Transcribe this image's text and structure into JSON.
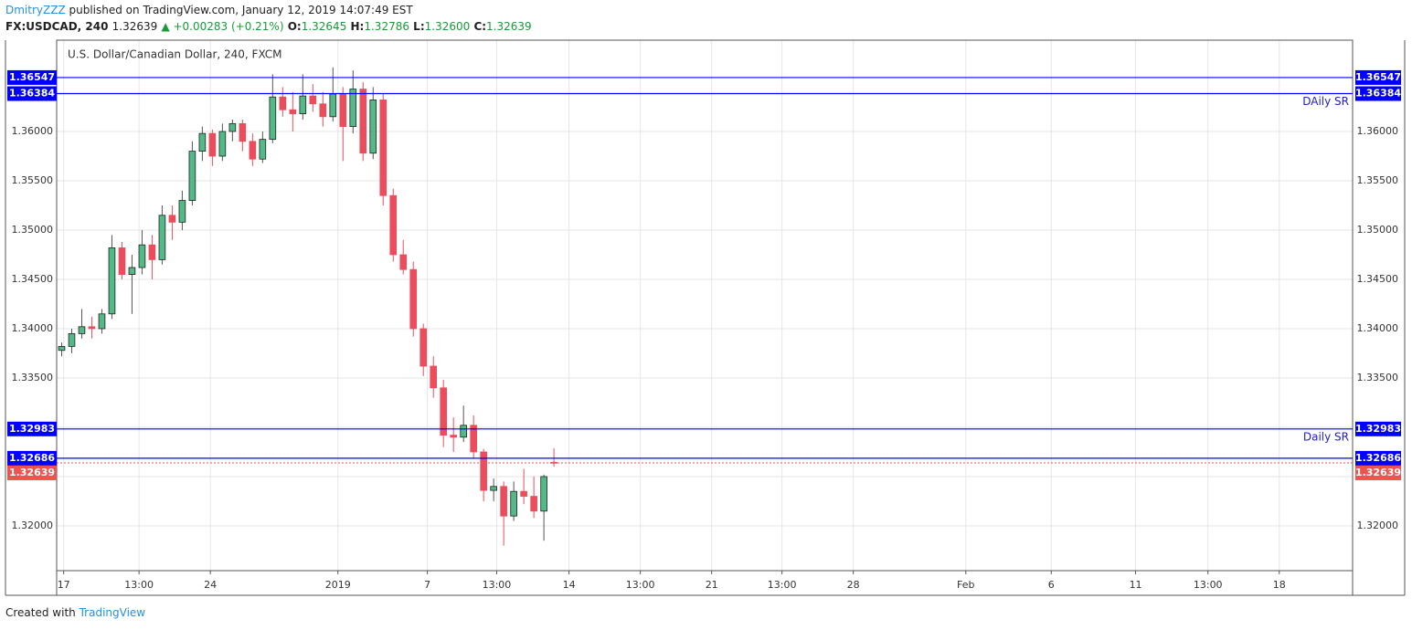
{
  "header": {
    "author": "DmitryZZZ",
    "published": "published on TradingView.com, January 12, 2019 14:07:49 EST"
  },
  "legend": {
    "symbol": "FX:USDCAD, 240",
    "last": "1.32639",
    "change": "▲ +0.00283 (+0.21%)",
    "o_label": "O:",
    "o": "1.32645",
    "h_label": "H:",
    "h": "1.32786",
    "l_label": "L:",
    "l": "1.32600",
    "c_label": "C:",
    "c": "1.32639"
  },
  "chart_data": {
    "type": "candlestick",
    "title": "U.S. Dollar/Canadian Dollar, 240, FXCM",
    "open": [
      1.3378,
      1.3382,
      1.3395,
      1.3402,
      1.34,
      1.3415,
      1.3482,
      1.3455,
      1.3462,
      1.3485,
      1.347,
      1.3515,
      1.3508,
      1.353,
      1.358,
      1.3598,
      1.3575,
      1.36,
      1.3608,
      1.359,
      1.3572,
      1.3592,
      1.3635,
      1.3622,
      1.3618,
      1.3636,
      1.3628,
      1.3615,
      1.3638,
      1.3605,
      1.3643,
      1.3578,
      1.3632,
      1.3535,
      1.3475,
      1.346,
      1.34,
      1.3362,
      1.334,
      1.3292,
      1.329,
      1.3302,
      1.3275,
      1.3236,
      1.324,
      1.321,
      1.3235,
      1.323,
      1.3215,
      1.32645
    ],
    "high": [
      1.3386,
      1.34,
      1.342,
      1.3412,
      1.342,
      1.3495,
      1.3488,
      1.3475,
      1.35,
      1.3495,
      1.3525,
      1.3525,
      1.354,
      1.359,
      1.3605,
      1.3602,
      1.3608,
      1.3612,
      1.3612,
      1.3598,
      1.36,
      1.3658,
      1.3645,
      1.364,
      1.3658,
      1.3648,
      1.364,
      1.3665,
      1.3645,
      1.3662,
      1.365,
      1.3645,
      1.3638,
      1.3542,
      1.349,
      1.3468,
      1.3405,
      1.3372,
      1.3348,
      1.331,
      1.3322,
      1.3312,
      1.3278,
      1.3248,
      1.3245,
      1.3245,
      1.3258,
      1.325,
      1.3252,
      1.32786
    ],
    "low": [
      1.3372,
      1.3375,
      1.339,
      1.339,
      1.3395,
      1.341,
      1.345,
      1.3415,
      1.3455,
      1.345,
      1.3465,
      1.349,
      1.35,
      1.3525,
      1.357,
      1.3565,
      1.357,
      1.359,
      1.358,
      1.3565,
      1.3568,
      1.3588,
      1.3615,
      1.36,
      1.3612,
      1.362,
      1.3605,
      1.361,
      1.357,
      1.3598,
      1.357,
      1.3572,
      1.3525,
      1.3468,
      1.3455,
      1.3392,
      1.3352,
      1.333,
      1.328,
      1.3275,
      1.3285,
      1.3268,
      1.3225,
      1.3225,
      1.318,
      1.3205,
      1.3222,
      1.3208,
      1.3185,
      1.326
    ],
    "close": [
      1.3382,
      1.3395,
      1.3402,
      1.34,
      1.3415,
      1.3482,
      1.3455,
      1.3462,
      1.3485,
      1.347,
      1.3515,
      1.3508,
      1.353,
      1.358,
      1.3598,
      1.3575,
      1.36,
      1.3608,
      1.359,
      1.3572,
      1.3592,
      1.3635,
      1.3622,
      1.3618,
      1.3636,
      1.3628,
      1.3615,
      1.3638,
      1.3605,
      1.3643,
      1.3578,
      1.3632,
      1.3535,
      1.3475,
      1.346,
      1.34,
      1.3362,
      1.334,
      1.3292,
      1.329,
      1.3302,
      1.3275,
      1.3236,
      1.324,
      1.321,
      1.3235,
      1.323,
      1.3215,
      1.325,
      1.32639
    ],
    "up_color": "#53b987",
    "down_color": "#eb4d5c",
    "wick_color": "#555555",
    "xlim": [
      -0.5,
      128.5
    ],
    "xticks": [
      {
        "value": 0.2,
        "label": "17"
      },
      {
        "value": 7.7,
        "label": "13:00"
      },
      {
        "value": 14.8,
        "label": "24"
      },
      {
        "value": 27.5,
        "label": "2019"
      },
      {
        "value": 36.4,
        "label": "7"
      },
      {
        "value": 43.3,
        "label": "13:00"
      },
      {
        "value": 50.5,
        "label": "14"
      },
      {
        "value": 57.6,
        "label": "13:00"
      },
      {
        "value": 64.7,
        "label": "21"
      },
      {
        "value": 71.7,
        "label": "13:00"
      },
      {
        "value": 78.8,
        "label": "28"
      },
      {
        "value": 90.0,
        "label": "Feb"
      },
      {
        "value": 98.5,
        "label": "6"
      },
      {
        "value": 106.9,
        "label": "11"
      },
      {
        "value": 114.1,
        "label": "13:00"
      },
      {
        "value": 121.2,
        "label": "18"
      }
    ],
    "ylim": [
      1.31546,
      1.36926
    ],
    "yticks": [
      {
        "value": 1.32,
        "label": "1.32000"
      },
      {
        "value": 1.325,
        "label": "1.32500"
      },
      {
        "value": 1.33,
        "label": "1.33000"
      },
      {
        "value": 1.335,
        "label": "1.33500"
      },
      {
        "value": 1.34,
        "label": "1.34000"
      },
      {
        "value": 1.345,
        "label": "1.34500"
      },
      {
        "value": 1.35,
        "label": "1.35000"
      },
      {
        "value": 1.355,
        "label": "1.35500"
      },
      {
        "value": 1.36,
        "label": "1.36000"
      }
    ],
    "grid": true,
    "lines": [
      {
        "value": 1.36547,
        "label": "1.36547",
        "color": "#0000ff"
      },
      {
        "value": 1.36384,
        "label": "1.36384",
        "color": "#0000ff"
      },
      {
        "value": 1.32983,
        "label": "1.32983",
        "color": "#0000ff"
      },
      {
        "value": 1.32686,
        "label": "1.32686",
        "color": "#0000ff"
      }
    ],
    "annotations": [
      {
        "text": "DAily SR",
        "value": 1.36384
      },
      {
        "text": "Daily SR",
        "value": 1.32983
      }
    ],
    "price_line": {
      "value": 1.32639,
      "label": "1.32639",
      "color": "#ef5350"
    }
  },
  "footer": {
    "created": "Created with",
    "brand": "TradingView"
  }
}
